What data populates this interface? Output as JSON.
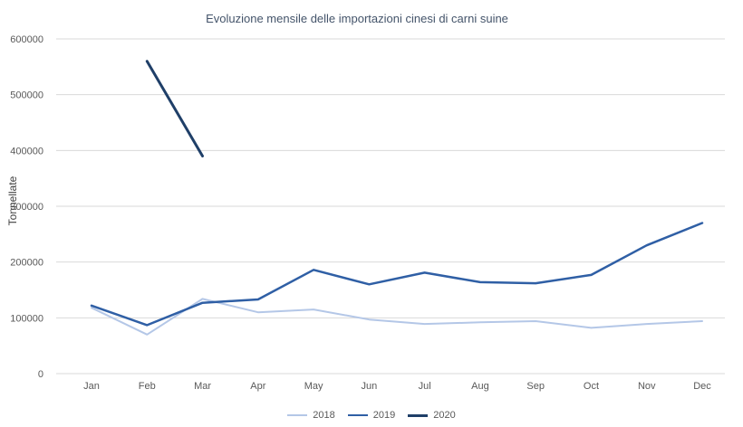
{
  "chart_data": {
    "type": "line",
    "title": "Evoluzione mensile delle importazioni cinesi di carni suine",
    "xlabel": "",
    "ylabel": "Tonnellate",
    "categories": [
      "Jan",
      "Feb",
      "Mar",
      "Apr",
      "May",
      "Jun",
      "Jul",
      "Aug",
      "Sep",
      "Oct",
      "Nov",
      "Dec"
    ],
    "ylim": [
      0,
      600000
    ],
    "ytick_step": 100000,
    "grid": true,
    "legend_position": "bottom",
    "series": [
      {
        "name": "2018",
        "color": "#b4c7e7",
        "width": 2,
        "values": [
          118000,
          70000,
          134000,
          110000,
          115000,
          97000,
          89000,
          92000,
          94000,
          82000,
          89000,
          94000
        ]
      },
      {
        "name": "2019",
        "color": "#2f5fa5",
        "width": 2.5,
        "values": [
          122000,
          87000,
          127000,
          133000,
          186000,
          160000,
          181000,
          164000,
          162000,
          177000,
          230000,
          270000
        ]
      },
      {
        "name": "2020",
        "color": "#1f3f68",
        "width": 3,
        "values": [
          null,
          560000,
          390000,
          null,
          null,
          null,
          null,
          null,
          null,
          null,
          null,
          null
        ]
      }
    ]
  }
}
